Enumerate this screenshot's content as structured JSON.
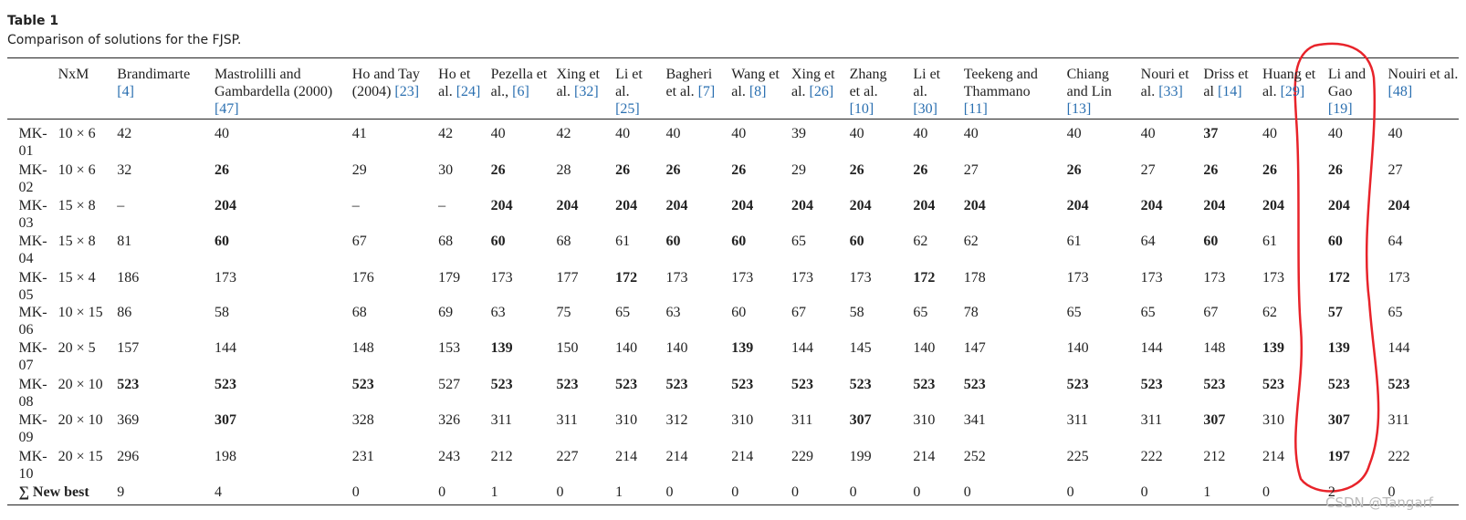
{
  "caption": {
    "label": "Table 1",
    "title": "Comparison of solutions for the FJSP."
  },
  "table": {
    "size_header": "NxM",
    "columns": [
      {
        "name": "Brandimarte",
        "ref": "[4]"
      },
      {
        "name": "Mastrolilli and Gambardella (2000)",
        "ref": "[47]"
      },
      {
        "name": "Ho and Tay (2004)",
        "ref": "[23]"
      },
      {
        "name": "Ho et al.",
        "ref": "[24]"
      },
      {
        "name": "Pezella et al.,",
        "ref": "[6]"
      },
      {
        "name": "Xing et al.",
        "ref": "[32]"
      },
      {
        "name": "Li et al.",
        "ref": "[25]"
      },
      {
        "name": "Bagheri et al.",
        "ref": "[7]"
      },
      {
        "name": "Wang et al.",
        "ref": "[8]"
      },
      {
        "name": "Xing et al.",
        "ref": "[26]"
      },
      {
        "name": "Zhang et al.",
        "ref": "[10]"
      },
      {
        "name": "Li et al.",
        "ref": "[30]"
      },
      {
        "name": "Teekeng and Thammano",
        "ref": "[11]"
      },
      {
        "name": "Chiang and Lin",
        "ref": "[13]"
      },
      {
        "name": "Nouri et al.",
        "ref": "[33]"
      },
      {
        "name": "Driss et al",
        "ref": "[14]"
      },
      {
        "name": "Huang et al.",
        "ref": "[29]"
      },
      {
        "name": "Li and Gao",
        "ref": "[19]"
      },
      {
        "name": "Nouiri et al.",
        "ref": "[48]"
      }
    ],
    "rows": [
      {
        "instance": "MK-01",
        "size": "10 × 6",
        "values": [
          42,
          40,
          41,
          42,
          40,
          42,
          40,
          40,
          40,
          39,
          40,
          40,
          40,
          40,
          40,
          37,
          40,
          40,
          40
        ],
        "bold": [
          15
        ]
      },
      {
        "instance": "MK-02",
        "size": "10 × 6",
        "values": [
          32,
          26,
          29,
          30,
          26,
          28,
          26,
          26,
          26,
          29,
          26,
          26,
          27,
          26,
          27,
          26,
          26,
          26,
          27
        ],
        "bold": [
          1,
          4,
          6,
          7,
          8,
          10,
          11,
          13,
          15,
          16,
          17
        ]
      },
      {
        "instance": "MK-03",
        "size": "15 × 8",
        "values": [
          "–",
          204,
          "–",
          "–",
          204,
          204,
          204,
          204,
          204,
          204,
          204,
          204,
          204,
          204,
          204,
          204,
          204,
          204,
          204
        ],
        "bold": [
          1,
          4,
          5,
          6,
          7,
          8,
          9,
          10,
          11,
          12,
          13,
          14,
          15,
          16,
          17,
          18
        ]
      },
      {
        "instance": "MK-04",
        "size": "15 × 8",
        "values": [
          81,
          60,
          67,
          68,
          60,
          68,
          61,
          60,
          60,
          65,
          60,
          62,
          62,
          61,
          64,
          60,
          61,
          60,
          64
        ],
        "bold": [
          1,
          4,
          7,
          8,
          10,
          15,
          17
        ]
      },
      {
        "instance": "MK-05",
        "size": "15 × 4",
        "values": [
          186,
          173,
          176,
          179,
          173,
          177,
          172,
          173,
          173,
          173,
          173,
          172,
          178,
          173,
          173,
          173,
          173,
          172,
          173
        ],
        "bold": [
          6,
          11,
          17
        ]
      },
      {
        "instance": "MK-06",
        "size": "10 × 15",
        "values": [
          86,
          58,
          68,
          69,
          63,
          75,
          65,
          63,
          60,
          67,
          58,
          65,
          78,
          65,
          65,
          67,
          62,
          57,
          65
        ],
        "bold": [
          17
        ]
      },
      {
        "instance": "MK-07",
        "size": "20 × 5",
        "values": [
          157,
          144,
          148,
          153,
          139,
          150,
          140,
          140,
          139,
          144,
          145,
          140,
          147,
          140,
          144,
          148,
          139,
          139,
          144
        ],
        "bold": [
          4,
          8,
          16,
          17
        ]
      },
      {
        "instance": "MK-08",
        "size": "20 × 10",
        "values": [
          523,
          523,
          523,
          527,
          523,
          523,
          523,
          523,
          523,
          523,
          523,
          523,
          523,
          523,
          523,
          523,
          523,
          523,
          523
        ],
        "bold": [
          0,
          1,
          2,
          4,
          5,
          6,
          7,
          8,
          9,
          10,
          11,
          12,
          13,
          14,
          15,
          16,
          17,
          18
        ]
      },
      {
        "instance": "MK-09",
        "size": "20 × 10",
        "values": [
          369,
          307,
          328,
          326,
          311,
          311,
          310,
          312,
          310,
          311,
          307,
          310,
          341,
          311,
          311,
          307,
          310,
          307,
          311
        ],
        "bold": [
          1,
          10,
          15,
          17
        ]
      },
      {
        "instance": "MK-10",
        "size": "20 × 15",
        "values": [
          296,
          198,
          231,
          243,
          212,
          227,
          214,
          214,
          214,
          229,
          199,
          214,
          252,
          225,
          222,
          212,
          214,
          197,
          222
        ],
        "bold": [
          17
        ]
      }
    ],
    "summary": {
      "label": "∑ New best",
      "values": [
        9,
        4,
        0,
        0,
        1,
        0,
        1,
        0,
        0,
        0,
        0,
        0,
        0,
        0,
        0,
        1,
        0,
        2,
        0
      ]
    }
  },
  "watermark": "CSDN @Tangarf"
}
